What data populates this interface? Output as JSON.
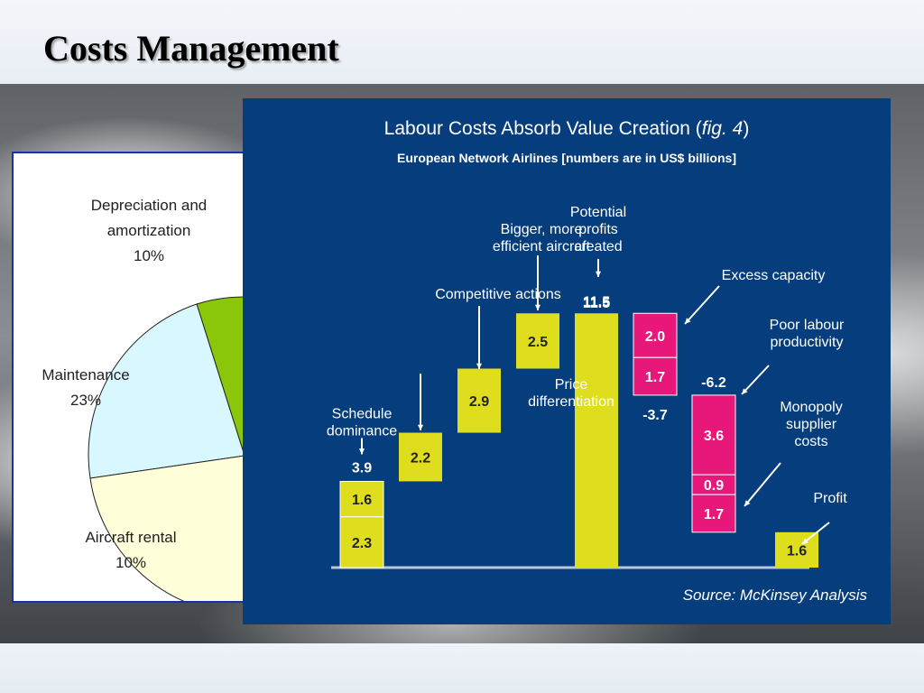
{
  "slide": {
    "title": "Costs Management"
  },
  "pie": {
    "labels": [
      {
        "name": "Depreciation and amortization",
        "lines": [
          "Depreciation and",
          "amortization"
        ],
        "pct": "10%",
        "value": 10,
        "color": "#8ac70b"
      },
      {
        "name": "Maintenance",
        "lines": [
          "Maintenance"
        ],
        "pct": "23%",
        "value": 23,
        "color": "#d9f7ff"
      },
      {
        "name": "Aircraft rental",
        "lines": [
          "Aircraft rental"
        ],
        "pct": "10%",
        "value": 10,
        "color": "#ffffd9"
      }
    ]
  },
  "chart_data": {
    "type": "bar",
    "title": "Labour Costs Absorb Value Creation (",
    "title_italic": "fig. 4",
    "title_suffix": ")",
    "subtitle": "European Network Airlines [numbers are in US$ billions]",
    "source": "Source: McKinsey Analysis",
    "colors": {
      "positive": "#dede1e",
      "negative": "#e8177a",
      "background": "#063d7c"
    },
    "bars": [
      {
        "name": "Schedule dominance",
        "label_lines": [
          "Schedule",
          "dominance"
        ],
        "kind": "stack",
        "start": 0,
        "segments": [
          2.3,
          1.6
        ],
        "segment_labels": [
          "2.3",
          "1.6"
        ],
        "total_label": "3.9",
        "color": "#dede1e"
      },
      {
        "name": "Price differentiation",
        "label_lines": [
          "Price",
          "differentiation"
        ],
        "kind": "step",
        "start": 3.9,
        "value": 2.2,
        "value_label": "2.2",
        "color": "#dede1e"
      },
      {
        "name": "Competitive actions",
        "label_lines": [
          "Competitive actions"
        ],
        "kind": "step",
        "start": 6.1,
        "value": 2.9,
        "value_label": "2.9",
        "color": "#dede1e"
      },
      {
        "name": "Bigger, more efficient aircraft",
        "label_lines": [
          "Bigger, more",
          "efficient aircraft"
        ],
        "kind": "step",
        "start": 9.0,
        "value": 2.5,
        "value_label": "2.5",
        "color": "#dede1e"
      },
      {
        "name": "Potential profits created",
        "label_lines": [
          "Potential",
          "profits",
          "created"
        ],
        "kind": "total",
        "start": 0,
        "value": 11.5,
        "value_label": "11.5",
        "color": "#dede1e"
      },
      {
        "name": "Excess capacity",
        "label_lines": [
          "Excess capacity"
        ],
        "kind": "neg-stack",
        "top": 11.5,
        "segments": [
          2.0,
          1.7
        ],
        "segment_labels": [
          "2.0",
          "1.7"
        ],
        "total_label": "-3.7",
        "color": "#e8177a"
      },
      {
        "name": "Poor labour productivity",
        "label_lines": [
          "Poor labour",
          "productivity"
        ],
        "kind": "neg-stack",
        "top": 7.8,
        "segments": [
          3.6,
          0.9,
          1.7
        ],
        "segment_labels": [
          "3.6",
          "0.9",
          "1.7"
        ],
        "total_label": "-6.2",
        "color": "#e8177a"
      },
      {
        "name": "Monopoly supplier costs",
        "label_lines": [
          "Monopoly",
          "supplier",
          "costs"
        ],
        "kind": "annotation",
        "color": "#e8177a"
      },
      {
        "name": "Profit",
        "label_lines": [
          "Profit"
        ],
        "kind": "total",
        "start": 0,
        "value": 1.6,
        "value_label": "1.6",
        "color": "#dede1e"
      }
    ]
  }
}
